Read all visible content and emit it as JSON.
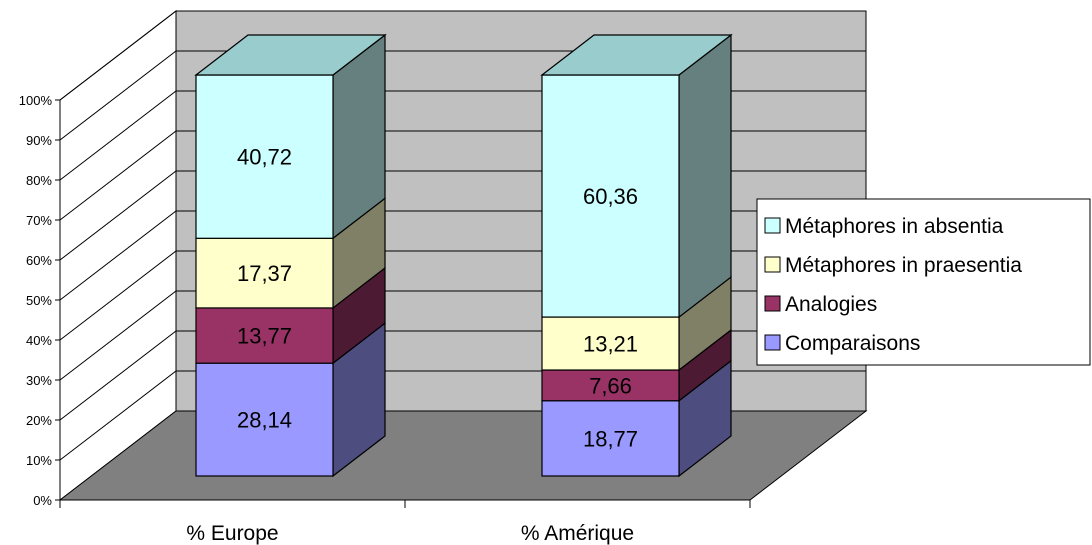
{
  "chart_data": {
    "type": "bar",
    "stacked": true,
    "percent_stacked": true,
    "three_d": true,
    "categories": [
      "% Europe",
      "% Amérique"
    ],
    "series": [
      {
        "name": "Comparaisons",
        "values": [
          28.14,
          18.77
        ],
        "labels": [
          "28,14",
          "18,77"
        ],
        "color": "#9999FF"
      },
      {
        "name": "Analogies",
        "values": [
          13.77,
          7.66
        ],
        "labels": [
          "13,77",
          "7,66"
        ],
        "color": "#993366"
      },
      {
        "name": "Métaphores in praesentia",
        "values": [
          17.37,
          13.21
        ],
        "labels": [
          "17,37",
          "13,21"
        ],
        "color": "#FFFFCC"
      },
      {
        "name": "Métaphores in absentia",
        "values": [
          40.72,
          60.36
        ],
        "labels": [
          "40,72",
          "60,36"
        ],
        "color": "#CCFFFF"
      }
    ],
    "y_ticks": [
      "0%",
      "10%",
      "20%",
      "30%",
      "40%",
      "50%",
      "60%",
      "70%",
      "80%",
      "90%",
      "100%"
    ],
    "ylim": [
      0,
      100
    ],
    "grid": true,
    "legend_position": "right",
    "wall_color": "#C0C0C0",
    "floor_color": "#808080"
  }
}
